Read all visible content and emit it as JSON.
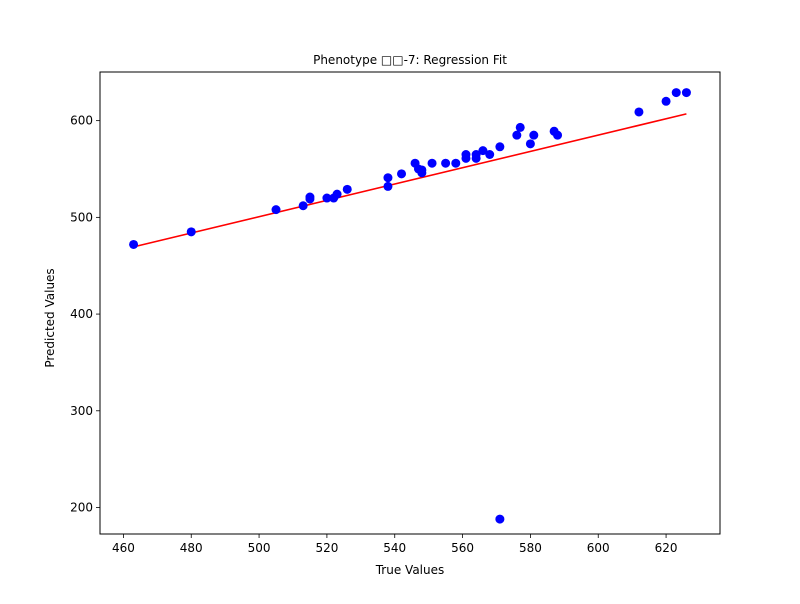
{
  "chart_data": {
    "type": "scatter",
    "title": "Phenotype □□-7: Regression Fit",
    "xlabel": "True Values",
    "ylabel": "Predicted Values",
    "xlim": [
      453.1,
      635.9
    ],
    "ylim": [
      172.6,
      650.3
    ],
    "xticks": [
      460,
      480,
      500,
      520,
      540,
      560,
      580,
      600,
      620
    ],
    "yticks": [
      200,
      300,
      400,
      500,
      600
    ],
    "xtick_labels": [
      "460",
      "480",
      "500",
      "520",
      "540",
      "560",
      "580",
      "600",
      "620"
    ],
    "ytick_labels": [
      "200",
      "300",
      "400",
      "500",
      "600"
    ],
    "grid": false,
    "legend": null,
    "series": [
      {
        "kind": "points",
        "color": "#0000ff",
        "x": [
          463,
          480,
          505,
          513,
          515,
          515,
          520,
          522,
          523,
          526,
          538,
          538,
          542,
          546,
          547,
          548,
          548,
          551,
          555,
          558,
          561,
          561,
          564,
          564,
          566,
          568,
          571,
          571,
          576,
          577,
          580,
          581,
          587,
          588,
          612,
          620,
          623,
          626
        ],
        "y": [
          472,
          485,
          508,
          512,
          519,
          521,
          520,
          520,
          524,
          529,
          532,
          541,
          545,
          556,
          550,
          546,
          549,
          556,
          556,
          556,
          565,
          561,
          561,
          565,
          569,
          565,
          573,
          188,
          585,
          593,
          576,
          585,
          589,
          585,
          609,
          620,
          629,
          629
        ]
      },
      {
        "kind": "fit-line",
        "color": "#ff0000",
        "x": [
          463,
          626
        ],
        "y": [
          469.5,
          607.0
        ]
      }
    ]
  }
}
